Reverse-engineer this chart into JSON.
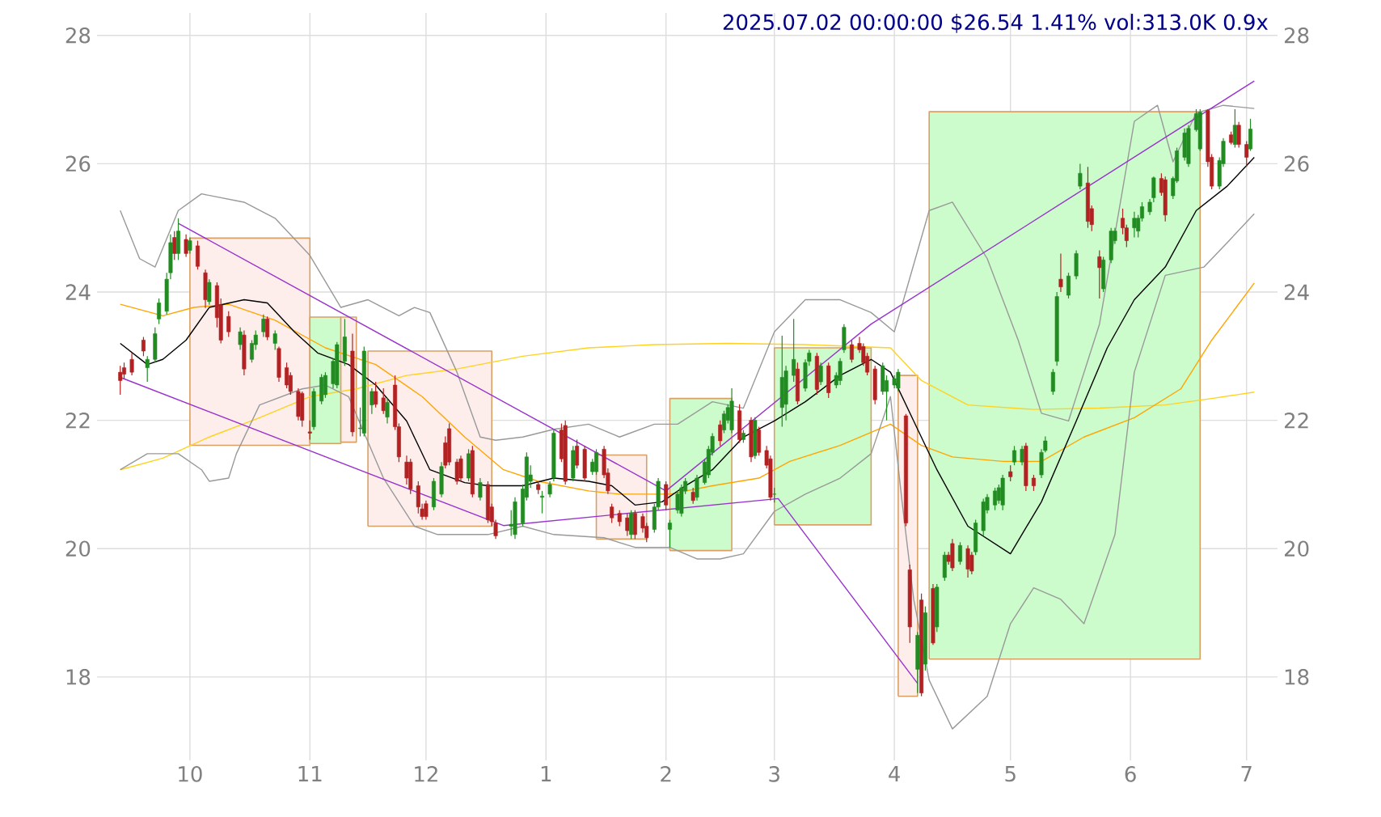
{
  "chart_data": {
    "type": "candlestick",
    "title": "2025.07.02 00:00:00 $26.54 1.41% vol:313.0K 0.9x",
    "xlim": [
      "2024-09-07",
      "2025-07-09"
    ],
    "ylim": [
      16.7,
      28.35
    ],
    "y2lim": [
      16.7,
      28.35
    ],
    "xticks": [
      {
        "value": "2024-10-01",
        "label": "10"
      },
      {
        "value": "2024-11-01",
        "label": "11"
      },
      {
        "value": "2024-12-01",
        "label": "12"
      },
      {
        "value": "2025-01-01",
        "label": "1"
      },
      {
        "value": "2025-02-01",
        "label": "2"
      },
      {
        "value": "2025-03-01",
        "label": "3"
      },
      {
        "value": "2025-04-01",
        "label": "4"
      },
      {
        "value": "2025-05-01",
        "label": "5"
      },
      {
        "value": "2025-06-01",
        "label": "6"
      },
      {
        "value": "2025-07-01",
        "label": "7"
      }
    ],
    "yticks": [
      18,
      20,
      22,
      24,
      26,
      28
    ],
    "y2ticks": [
      18,
      20,
      22,
      24,
      26,
      28
    ],
    "grid": true,
    "x": [
      "2024-09-13",
      "2024-09-14",
      "2024-09-16",
      "2024-09-19",
      "2024-09-20",
      "2024-09-22",
      "2024-09-23",
      "2024-09-25",
      "2024-09-26",
      "2024-09-27",
      "2024-09-28",
      "2024-09-30",
      "2024-10-01",
      "2024-10-03",
      "2024-10-05",
      "2024-10-06",
      "2024-10-08",
      "2024-10-09",
      "2024-10-11",
      "2024-10-14",
      "2024-10-15",
      "2024-10-17",
      "2024-10-18",
      "2024-10-20",
      "2024-10-21",
      "2024-10-23",
      "2024-10-24",
      "2024-10-26",
      "2024-10-27",
      "2024-10-29",
      "2024-10-30",
      "2024-11-01",
      "2024-11-02",
      "2024-11-04",
      "2024-11-05",
      "2024-11-07",
      "2024-11-08",
      "2024-11-10",
      "2024-11-12",
      "2024-11-14",
      "2024-11-15",
      "2024-11-17",
      "2024-11-18",
      "2024-11-20",
      "2024-11-21",
      "2024-11-23",
      "2024-11-24",
      "2024-11-26",
      "2024-11-27",
      "2024-11-29",
      "2024-11-30",
      "2024-12-01",
      "2024-12-03",
      "2024-12-05",
      "2024-12-06",
      "2024-12-07",
      "2024-12-09",
      "2024-12-10",
      "2024-12-12",
      "2024-12-13",
      "2024-12-15",
      "2024-12-17",
      "2024-12-18",
      "2024-12-19",
      "2024-12-23",
      "2024-12-24",
      "2024-12-26",
      "2024-12-27",
      "2024-12-28",
      "2024-12-30",
      "2024-12-31",
      "2025-01-02",
      "2025-01-03",
      "2025-01-05",
      "2025-01-06",
      "2025-01-08",
      "2025-01-09",
      "2025-01-11",
      "2025-01-13",
      "2025-01-14",
      "2025-01-16",
      "2025-01-17",
      "2025-01-18",
      "2025-01-20",
      "2025-01-22",
      "2025-01-23",
      "2025-01-24",
      "2025-01-26",
      "2025-01-27",
      "2025-01-29",
      "2025-01-30",
      "2025-02-01",
      "2025-02-02",
      "2025-02-04",
      "2025-02-05",
      "2025-02-06",
      "2025-02-08",
      "2025-02-09",
      "2025-02-11",
      "2025-02-12",
      "2025-02-13",
      "2025-02-15",
      "2025-02-16",
      "2025-02-17",
      "2025-02-18",
      "2025-02-20",
      "2025-02-21",
      "2025-02-23",
      "2025-02-24",
      "2025-02-25",
      "2025-02-27",
      "2025-02-28",
      "2025-03-01",
      "2025-03-03",
      "2025-03-04",
      "2025-03-06",
      "2025-03-07",
      "2025-03-09",
      "2025-03-10",
      "2025-03-12",
      "2025-03-13",
      "2025-03-15",
      "2025-03-17",
      "2025-03-18",
      "2025-03-19",
      "2025-03-21",
      "2025-03-23",
      "2025-03-24",
      "2025-03-25",
      "2025-03-27",
      "2025-03-29",
      "2025-03-30",
      "2025-04-01",
      "2025-04-02",
      "2025-04-04",
      "2025-04-05",
      "2025-04-07",
      "2025-04-08",
      "2025-04-09",
      "2025-04-11",
      "2025-04-12",
      "2025-04-14",
      "2025-04-15",
      "2025-04-16",
      "2025-04-18",
      "2025-04-20",
      "2025-04-21",
      "2025-04-22",
      "2025-04-24",
      "2025-04-25",
      "2025-04-27",
      "2025-04-28",
      "2025-04-29",
      "2025-05-01",
      "2025-05-02",
      "2025-05-04",
      "2025-05-05",
      "2025-05-07",
      "2025-05-09",
      "2025-05-10",
      "2025-05-12",
      "2025-05-13",
      "2025-05-14",
      "2025-05-16",
      "2025-05-18",
      "2025-05-19",
      "2025-05-21",
      "2025-05-22",
      "2025-05-24",
      "2025-05-25",
      "2025-05-27",
      "2025-05-28",
      "2025-05-30",
      "2025-05-31",
      "2025-06-02",
      "2025-06-03",
      "2025-06-04",
      "2025-06-06",
      "2025-06-07",
      "2025-06-09",
      "2025-06-10",
      "2025-06-12",
      "2025-06-13",
      "2025-06-15",
      "2025-06-16",
      "2025-06-18",
      "2025-06-19",
      "2025-06-21",
      "2025-06-22",
      "2025-06-24",
      "2025-06-25",
      "2025-06-27",
      "2025-06-28",
      "2025-06-29",
      "2025-07-01",
      "2025-07-02"
    ],
    "ohlc": [
      [
        22.75,
        22.85,
        22.4,
        22.62
      ],
      [
        22.82,
        22.9,
        22.65,
        22.72
      ],
      [
        22.95,
        23.05,
        22.7,
        22.75
      ],
      [
        23.25,
        23.3,
        23.0,
        23.08
      ],
      [
        22.82,
        23.0,
        22.6,
        22.95
      ],
      [
        22.95,
        23.45,
        22.9,
        23.35
      ],
      [
        23.58,
        23.9,
        23.5,
        23.83
      ],
      [
        23.7,
        24.3,
        23.65,
        24.2
      ],
      [
        24.3,
        24.9,
        24.2,
        24.77
      ],
      [
        24.85,
        24.95,
        24.5,
        24.6
      ],
      [
        24.6,
        25.15,
        24.5,
        24.95
      ],
      [
        24.82,
        24.9,
        24.55,
        24.6
      ],
      [
        24.65,
        24.85,
        24.6,
        24.8
      ],
      [
        24.72,
        24.8,
        24.35,
        24.4
      ],
      [
        24.3,
        24.35,
        23.75,
        23.88
      ],
      [
        23.85,
        24.2,
        23.8,
        24.15
      ],
      [
        24.1,
        24.15,
        23.45,
        23.6
      ],
      [
        23.8,
        23.9,
        23.2,
        23.25
      ],
      [
        23.62,
        23.7,
        23.3,
        23.38
      ],
      [
        23.18,
        23.45,
        23.1,
        23.38
      ],
      [
        23.33,
        23.4,
        22.7,
        22.8
      ],
      [
        22.95,
        23.25,
        22.9,
        23.2
      ],
      [
        23.18,
        23.4,
        23.1,
        23.33
      ],
      [
        23.38,
        23.65,
        23.3,
        23.58
      ],
      [
        23.58,
        23.62,
        23.25,
        23.3
      ],
      [
        23.2,
        23.4,
        23.1,
        23.35
      ],
      [
        23.12,
        23.15,
        22.6,
        22.67
      ],
      [
        22.82,
        22.9,
        22.5,
        22.55
      ],
      [
        22.7,
        22.75,
        22.4,
        22.45
      ],
      [
        22.45,
        22.5,
        22.0,
        22.06
      ],
      [
        22.42,
        22.45,
        21.9,
        22.0
      ],
      [
        21.82,
        22.0,
        21.7,
        21.8
      ],
      [
        21.9,
        22.5,
        21.85,
        22.45
      ],
      [
        22.3,
        22.72,
        22.25,
        22.67
      ],
      [
        22.4,
        22.75,
        22.35,
        22.7
      ],
      [
        22.57,
        22.97,
        22.5,
        22.92
      ],
      [
        22.55,
        23.22,
        22.5,
        23.18
      ],
      [
        22.92,
        23.58,
        22.85,
        23.3
      ],
      [
        23.08,
        23.35,
        21.75,
        21.82
      ],
      [
        21.87,
        22.2,
        21.75,
        21.88
      ],
      [
        21.8,
        23.15,
        21.75,
        23.08
      ],
      [
        22.24,
        22.5,
        22.1,
        22.45
      ],
      [
        22.45,
        22.6,
        22.2,
        22.25
      ],
      [
        22.35,
        22.5,
        22.1,
        22.15
      ],
      [
        22.05,
        22.35,
        21.95,
        22.28
      ],
      [
        22.55,
        22.7,
        21.85,
        21.9
      ],
      [
        21.9,
        21.95,
        21.35,
        21.43
      ],
      [
        21.35,
        21.45,
        21.0,
        21.1
      ],
      [
        21.35,
        21.4,
        20.85,
        20.93
      ],
      [
        20.98,
        21.05,
        20.55,
        20.65
      ],
      [
        20.62,
        20.7,
        20.45,
        20.5
      ],
      [
        20.7,
        20.75,
        20.45,
        20.5
      ],
      [
        20.65,
        21.1,
        20.6,
        21.05
      ],
      [
        20.85,
        21.35,
        20.8,
        21.28
      ],
      [
        21.65,
        21.75,
        21.25,
        21.3
      ],
      [
        21.87,
        21.95,
        21.3,
        21.35
      ],
      [
        21.35,
        21.4,
        21.0,
        21.05
      ],
      [
        21.4,
        21.45,
        21.05,
        21.1
      ],
      [
        21.1,
        21.55,
        21.05,
        21.48
      ],
      [
        21.53,
        21.6,
        20.8,
        20.85
      ],
      [
        20.8,
        21.1,
        20.75,
        21.03
      ],
      [
        21.0,
        21.05,
        20.4,
        20.45
      ],
      [
        20.65,
        20.7,
        20.35,
        20.42
      ],
      [
        20.4,
        20.45,
        20.15,
        20.2
      ],
      [
        20.35,
        20.6,
        20.2,
        20.38
      ],
      [
        20.22,
        20.8,
        20.15,
        20.73
      ],
      [
        20.4,
        21.0,
        20.35,
        20.93
      ],
      [
        20.8,
        21.5,
        20.75,
        21.43
      ],
      [
        21.05,
        21.3,
        20.95,
        21.15
      ],
      [
        21.0,
        21.05,
        20.85,
        20.92
      ],
      [
        20.8,
        20.9,
        20.55,
        20.82
      ],
      [
        20.85,
        21.05,
        20.8,
        21.0
      ],
      [
        21.1,
        21.85,
        21.05,
        21.8
      ],
      [
        21.85,
        21.95,
        21.35,
        21.4
      ],
      [
        21.92,
        22.0,
        21.0,
        21.05
      ],
      [
        21.1,
        21.6,
        21.05,
        21.53
      ],
      [
        21.6,
        21.7,
        21.25,
        21.3
      ],
      [
        21.55,
        21.6,
        21.05,
        21.1
      ],
      [
        21.2,
        21.4,
        21.15,
        21.35
      ],
      [
        21.2,
        21.55,
        21.15,
        21.5
      ],
      [
        21.55,
        21.6,
        21.1,
        21.15
      ],
      [
        21.18,
        21.25,
        20.85,
        20.9
      ],
      [
        20.65,
        20.7,
        20.4,
        20.48
      ],
      [
        20.55,
        20.6,
        20.35,
        20.42
      ],
      [
        20.48,
        20.55,
        20.2,
        20.28
      ],
      [
        20.22,
        20.6,
        20.15,
        20.55
      ],
      [
        20.55,
        20.6,
        20.15,
        20.22
      ],
      [
        20.5,
        20.55,
        20.25,
        20.32
      ],
      [
        20.35,
        20.4,
        20.1,
        20.17
      ],
      [
        20.3,
        20.7,
        20.25,
        20.65
      ],
      [
        20.65,
        21.1,
        20.6,
        21.05
      ],
      [
        21.0,
        21.05,
        20.6,
        20.68
      ],
      [
        20.3,
        20.45,
        20.02,
        20.4
      ],
      [
        20.6,
        20.9,
        20.55,
        20.85
      ],
      [
        20.55,
        21.0,
        20.5,
        20.95
      ],
      [
        20.9,
        21.1,
        20.85,
        21.05
      ],
      [
        20.88,
        20.95,
        20.7,
        20.75
      ],
      [
        20.8,
        21.15,
        20.75,
        21.1
      ],
      [
        21.03,
        21.4,
        21.0,
        21.35
      ],
      [
        21.15,
        21.6,
        21.1,
        21.55
      ],
      [
        21.5,
        21.8,
        21.45,
        21.75
      ],
      [
        21.93,
        22.0,
        21.6,
        21.68
      ],
      [
        21.85,
        22.15,
        21.8,
        22.1
      ],
      [
        22.0,
        22.25,
        21.95,
        22.2
      ],
      [
        21.85,
        22.5,
        21.8,
        22.3
      ],
      [
        22.15,
        22.25,
        21.65,
        21.7
      ],
      [
        21.7,
        21.85,
        21.65,
        21.8
      ],
      [
        22.0,
        22.05,
        21.35,
        21.43
      ],
      [
        21.45,
        22.05,
        21.4,
        22.0
      ],
      [
        21.85,
        21.9,
        21.45,
        21.5
      ],
      [
        21.53,
        21.6,
        21.25,
        21.3
      ],
      [
        21.4,
        21.45,
        20.75,
        20.8
      ],
      [
        20.85,
        20.95,
        20.72,
        20.85
      ],
      [
        22.2,
        23.32,
        21.9,
        22.67
      ],
      [
        22.25,
        22.85,
        22.0,
        22.77
      ],
      [
        22.7,
        23.58,
        22.6,
        22.95
      ],
      [
        22.8,
        22.9,
        22.25,
        22.3
      ],
      [
        22.5,
        22.95,
        22.45,
        22.9
      ],
      [
        22.92,
        23.1,
        22.85,
        23.05
      ],
      [
        23.0,
        23.05,
        22.4,
        22.48
      ],
      [
        22.6,
        22.9,
        22.55,
        22.85
      ],
      [
        22.85,
        22.9,
        22.35,
        22.43
      ],
      [
        22.55,
        22.75,
        22.5,
        22.7
      ],
      [
        22.62,
        22.97,
        22.55,
        22.92
      ],
      [
        23.1,
        23.5,
        23.05,
        23.45
      ],
      [
        23.18,
        23.25,
        22.9,
        22.95
      ],
      [
        23.2,
        23.3,
        23.05,
        23.1
      ],
      [
        23.15,
        23.2,
        22.85,
        22.9
      ],
      [
        23.0,
        23.05,
        22.7,
        22.75
      ],
      [
        22.8,
        22.85,
        22.25,
        22.32
      ],
      [
        22.45,
        22.9,
        22.4,
        22.85
      ],
      [
        22.45,
        22.7,
        22.0,
        22.62
      ],
      [
        22.55,
        22.7,
        22.5,
        22.65
      ],
      [
        22.5,
        22.8,
        22.45,
        22.75
      ],
      [
        22.07,
        22.1,
        20.35,
        20.4
      ],
      [
        19.67,
        19.75,
        18.53,
        18.78
      ],
      [
        18.12,
        18.7,
        17.75,
        18.65
      ],
      [
        19.2,
        19.3,
        17.7,
        17.75
      ],
      [
        18.2,
        19.1,
        18.1,
        19.0
      ],
      [
        19.38,
        19.45,
        18.5,
        18.53
      ],
      [
        18.78,
        19.45,
        18.7,
        19.4
      ],
      [
        19.55,
        19.95,
        19.5,
        19.9
      ],
      [
        19.9,
        19.95,
        19.75,
        19.8
      ],
      [
        20.08,
        20.15,
        19.65,
        19.7
      ],
      [
        19.8,
        20.1,
        19.75,
        20.05
      ],
      [
        20.0,
        20.05,
        19.55,
        19.68
      ],
      [
        19.9,
        19.95,
        19.6,
        19.65
      ],
      [
        19.95,
        20.45,
        19.9,
        20.4
      ],
      [
        20.28,
        20.78,
        20.2,
        20.73
      ],
      [
        20.6,
        20.85,
        20.55,
        20.8
      ],
      [
        20.68,
        20.95,
        20.6,
        20.9
      ],
      [
        20.75,
        21.0,
        20.7,
        20.95
      ],
      [
        20.68,
        21.15,
        20.6,
        21.1
      ],
      [
        21.2,
        21.3,
        21.05,
        21.12
      ],
      [
        21.35,
        21.6,
        21.3,
        21.53
      ],
      [
        21.35,
        21.6,
        21.3,
        21.55
      ],
      [
        21.6,
        21.65,
        20.9,
        20.98
      ],
      [
        21.1,
        21.15,
        20.9,
        20.98
      ],
      [
        21.15,
        21.55,
        21.1,
        21.5
      ],
      [
        21.53,
        21.75,
        21.5,
        21.68
      ],
      [
        22.45,
        22.8,
        22.4,
        22.75
      ],
      [
        22.92,
        24.0,
        22.85,
        23.93
      ],
      [
        24.2,
        24.6,
        24.0,
        24.08
      ],
      [
        23.95,
        24.3,
        23.9,
        24.25
      ],
      [
        24.25,
        24.65,
        24.2,
        24.6
      ],
      [
        25.65,
        26.0,
        25.6,
        25.85
      ],
      [
        25.7,
        25.95,
        25.0,
        25.1
      ],
      [
        25.3,
        25.35,
        24.95,
        25.05
      ],
      [
        24.55,
        24.65,
        23.9,
        24.38
      ],
      [
        24.05,
        24.55,
        24.0,
        24.5
      ],
      [
        24.5,
        25.0,
        24.45,
        24.95
      ],
      [
        24.8,
        25.0,
        24.75,
        24.95
      ],
      [
        25.15,
        25.3,
        24.9,
        25.0
      ],
      [
        25.0,
        25.05,
        24.7,
        24.8
      ],
      [
        25.0,
        25.25,
        24.85,
        25.15
      ],
      [
        24.95,
        25.2,
        24.85,
        25.15
      ],
      [
        25.15,
        25.4,
        25.1,
        25.33
      ],
      [
        25.25,
        25.45,
        25.2,
        25.4
      ],
      [
        25.47,
        25.8,
        25.4,
        25.78
      ],
      [
        25.77,
        25.85,
        25.5,
        25.55
      ],
      [
        25.75,
        25.8,
        25.1,
        25.2
      ],
      [
        25.5,
        25.8,
        25.45,
        25.77
      ],
      [
        25.73,
        26.25,
        25.7,
        26.2
      ],
      [
        26.1,
        26.55,
        26.05,
        26.48
      ],
      [
        26.0,
        26.6,
        25.95,
        26.55
      ],
      [
        26.53,
        26.85,
        26.5,
        26.78
      ],
      [
        26.23,
        26.85,
        26.2,
        26.8
      ],
      [
        26.83,
        26.85,
        25.95,
        26.03
      ],
      [
        26.1,
        26.15,
        25.6,
        25.65
      ],
      [
        25.65,
        26.1,
        25.6,
        26.05
      ],
      [
        26.0,
        26.4,
        25.95,
        26.35
      ],
      [
        26.45,
        26.5,
        26.3,
        26.33
      ],
      [
        26.3,
        26.85,
        26.25,
        26.6
      ],
      [
        26.6,
        26.65,
        26.25,
        26.3
      ],
      [
        26.3,
        26.35,
        25.95,
        26.1
      ],
      [
        26.23,
        26.7,
        26.2,
        26.54
      ]
    ],
    "series": [
      {
        "type": "area",
        "color": "#fdeeec",
        "x": [
          "2024-10-01",
          "2024-11-01",
          "2024-11-01",
          "2024-10-01",
          "2024-10-01"
        ],
        "values": [
          21.61,
          21.61,
          24.84,
          24.84,
          21.61
        ]
      },
      {
        "type": "area",
        "color": "#ccfccc",
        "x": [
          "2024-11-01",
          "2024-11-09",
          "2024-11-09",
          "2024-11-01",
          "2024-11-01"
        ],
        "values": [
          21.64,
          21.64,
          23.61,
          23.61,
          21.64
        ]
      },
      {
        "type": "area",
        "color": "#fdeeec",
        "x": [
          "2024-11-09",
          "2024-11-13",
          "2024-11-13",
          "2024-11-09",
          "2024-11-09"
        ],
        "values": [
          21.66,
          21.66,
          23.61,
          23.61,
          21.66
        ]
      },
      {
        "type": "area",
        "color": "#fdeeec",
        "x": [
          "2024-11-16",
          "2024-12-18",
          "2024-12-18",
          "2024-11-16",
          "2024-11-16"
        ],
        "values": [
          20.35,
          20.35,
          23.08,
          23.08,
          20.35
        ]
      },
      {
        "type": "area",
        "color": "#fdeeec",
        "x": [
          "2025-01-14",
          "2025-01-27",
          "2025-01-27",
          "2025-01-14",
          "2025-01-14"
        ],
        "values": [
          20.15,
          20.15,
          21.46,
          21.46,
          20.15
        ]
      },
      {
        "type": "area",
        "color": "#ccfccc",
        "x": [
          "2025-02-02",
          "2025-02-18",
          "2025-02-18",
          "2025-02-02",
          "2025-02-02"
        ],
        "values": [
          19.97,
          19.97,
          22.34,
          22.34,
          19.97
        ]
      },
      {
        "type": "area",
        "color": "#ccfccc",
        "x": [
          "2025-03-01",
          "2025-03-26",
          "2025-03-26",
          "2025-03-01",
          "2025-03-01"
        ],
        "values": [
          20.37,
          20.37,
          23.13,
          23.13,
          20.37
        ]
      },
      {
        "type": "area",
        "color": "#fdeeec",
        "x": [
          "2025-04-02",
          "2025-04-07",
          "2025-04-07",
          "2025-04-02",
          "2025-04-02"
        ],
        "values": [
          17.7,
          17.7,
          22.7,
          22.7,
          17.7
        ]
      },
      {
        "type": "area",
        "color": "#ccfccc",
        "x": [
          "2025-04-10",
          "2025-06-19",
          "2025-06-19",
          "2025-04-10",
          "2025-04-10"
        ],
        "values": [
          18.28,
          18.28,
          26.81,
          26.81,
          18.28
        ]
      },
      {
        "type": "line",
        "color": "#ffd21f",
        "x": [
          "2024-09-13",
          "2024-09-24",
          "2024-10-06",
          "2024-10-19",
          "2024-11-01",
          "2024-11-13",
          "2024-11-26",
          "2024-12-09",
          "2024-12-26",
          "2025-01-12",
          "2025-01-29",
          "2025-02-17",
          "2025-03-09",
          "2025-03-31",
          "2025-04-08",
          "2025-04-20",
          "2025-05-07",
          "2025-05-24",
          "2025-06-10",
          "2025-06-22",
          "2025-07-03"
        ],
        "values": [
          21.23,
          21.41,
          21.74,
          22.04,
          22.37,
          22.49,
          22.7,
          22.8,
          23.0,
          23.13,
          23.18,
          23.2,
          23.18,
          23.13,
          22.62,
          22.24,
          22.17,
          22.19,
          22.24,
          22.34,
          22.44
        ]
      },
      {
        "type": "line",
        "color": "#ffa500",
        "x": [
          "2024-09-13",
          "2024-09-24",
          "2024-10-02",
          "2024-10-11",
          "2024-10-23",
          "2024-11-05",
          "2024-11-18",
          "2024-11-30",
          "2024-12-11",
          "2024-12-21",
          "2024-12-30",
          "2025-01-12",
          "2025-01-20",
          "2025-02-02",
          "2025-02-13",
          "2025-02-25",
          "2025-03-05",
          "2025-03-18",
          "2025-03-31",
          "2025-04-08",
          "2025-04-16",
          "2025-04-29",
          "2025-05-09",
          "2025-05-20",
          "2025-06-02",
          "2025-06-14",
          "2025-06-22",
          "2025-07-03"
        ],
        "values": [
          23.81,
          23.63,
          23.76,
          23.81,
          23.56,
          23.13,
          22.87,
          22.37,
          21.74,
          21.23,
          21.05,
          20.9,
          20.85,
          20.85,
          20.98,
          21.1,
          21.36,
          21.61,
          21.94,
          21.61,
          21.43,
          21.36,
          21.36,
          21.74,
          22.04,
          22.49,
          23.25,
          24.14
        ]
      },
      {
        "type": "line",
        "color": "#999999",
        "x": [
          "2024-09-13",
          "2024-09-18",
          "2024-09-22",
          "2024-09-28",
          "2024-10-04",
          "2024-10-15",
          "2024-10-23",
          "2024-11-01",
          "2024-11-09",
          "2024-11-16",
          "2024-11-24",
          "2024-11-28",
          "2024-12-02",
          "2024-12-09",
          "2024-12-15",
          "2024-12-19",
          "2024-12-26",
          "2025-01-03",
          "2025-01-12",
          "2025-01-20",
          "2025-01-29",
          "2025-02-04",
          "2025-02-13",
          "2025-02-21",
          "2025-03-01",
          "2025-03-09",
          "2025-03-18",
          "2025-03-26",
          "2025-04-01",
          "2025-04-04",
          "2025-04-10",
          "2025-04-16",
          "2025-04-25",
          "2025-05-03",
          "2025-05-09",
          "2025-05-16",
          "2025-05-24",
          "2025-06-02",
          "2025-06-08",
          "2025-06-12",
          "2025-06-18",
          "2025-06-25",
          "2025-07-03"
        ],
        "values": [
          25.27,
          24.52,
          24.39,
          25.27,
          25.53,
          25.4,
          25.15,
          24.57,
          23.76,
          23.88,
          23.63,
          23.76,
          23.68,
          22.75,
          21.74,
          21.69,
          21.74,
          21.86,
          21.94,
          21.74,
          21.94,
          21.94,
          22.29,
          22.19,
          23.38,
          23.88,
          23.88,
          23.68,
          23.38,
          24.01,
          25.27,
          25.4,
          24.52,
          23.25,
          22.11,
          21.99,
          23.5,
          26.66,
          26.91,
          26.03,
          26.79,
          26.91,
          26.86
        ]
      },
      {
        "type": "line",
        "color": "#999999",
        "x": [
          "2024-09-13",
          "2024-09-20",
          "2024-09-28",
          "2024-10-04",
          "2024-10-06",
          "2024-10-11",
          "2024-10-13",
          "2024-10-19",
          "2024-10-30",
          "2024-11-05",
          "2024-11-11",
          "2024-11-20",
          "2024-11-28",
          "2024-12-04",
          "2024-12-17",
          "2024-12-26",
          "2025-01-03",
          "2025-01-16",
          "2025-01-24",
          "2025-02-02",
          "2025-02-09",
          "2025-02-15",
          "2025-02-21",
          "2025-03-01",
          "2025-03-09",
          "2025-03-18",
          "2025-03-26",
          "2025-03-31",
          "2025-04-03",
          "2025-04-06",
          "2025-04-10",
          "2025-04-16",
          "2025-04-25",
          "2025-05-01",
          "2025-05-07",
          "2025-05-14",
          "2025-05-20",
          "2025-05-28",
          "2025-06-02",
          "2025-06-10",
          "2025-06-20",
          "2025-06-26",
          "2025-07-03"
        ],
        "values": [
          21.23,
          21.48,
          21.48,
          21.23,
          21.05,
          21.1,
          21.48,
          22.24,
          22.49,
          22.55,
          22.37,
          21.1,
          20.35,
          20.22,
          20.22,
          20.35,
          20.22,
          20.17,
          20.02,
          20.02,
          19.84,
          19.84,
          19.92,
          20.58,
          20.85,
          21.1,
          21.48,
          22.37,
          20.73,
          19.21,
          17.95,
          17.19,
          17.7,
          18.83,
          19.39,
          19.21,
          18.83,
          20.22,
          22.75,
          24.26,
          24.39,
          24.77,
          25.22
        ]
      },
      {
        "type": "line",
        "color": "#000000",
        "x": [
          "2024-09-13",
          "2024-09-20",
          "2024-09-24",
          "2024-09-30",
          "2024-10-06",
          "2024-10-15",
          "2024-10-21",
          "2024-10-28",
          "2024-11-03",
          "2024-11-11",
          "2024-11-18",
          "2024-11-26",
          "2024-12-02",
          "2024-12-11",
          "2024-12-17",
          "2024-12-26",
          "2025-01-03",
          "2025-01-12",
          "2025-01-18",
          "2025-01-24",
          "2025-01-31",
          "2025-02-06",
          "2025-02-13",
          "2025-02-21",
          "2025-03-01",
          "2025-03-09",
          "2025-03-18",
          "2025-03-26",
          "2025-03-31",
          "2025-04-06",
          "2025-04-12",
          "2025-04-20",
          "2025-05-01",
          "2025-05-09",
          "2025-05-18",
          "2025-05-26",
          "2025-06-02",
          "2025-06-10",
          "2025-06-18",
          "2025-06-26",
          "2025-07-03"
        ],
        "values": [
          23.2,
          22.87,
          22.95,
          23.25,
          23.76,
          23.88,
          23.83,
          23.38,
          23.05,
          22.87,
          22.55,
          21.99,
          21.23,
          21.03,
          20.98,
          20.98,
          21.1,
          21.05,
          20.98,
          20.68,
          20.73,
          20.98,
          21.23,
          21.74,
          21.99,
          22.29,
          22.7,
          22.95,
          22.75,
          21.99,
          21.23,
          20.35,
          19.92,
          20.73,
          21.99,
          23.13,
          23.88,
          24.39,
          25.27,
          25.65,
          26.1
        ]
      },
      {
        "type": "line",
        "color": "#9932cc",
        "x": [
          "2024-09-28",
          "2025-02-01",
          "2025-03-26",
          "2025-07-03"
        ],
        "values": [
          25.07,
          20.9,
          23.5,
          27.29
        ]
      },
      {
        "type": "line",
        "color": "#9932cc",
        "x": [
          "2024-09-13",
          "2024-12-21",
          "2025-03-02",
          "2025-04-07"
        ],
        "values": [
          22.67,
          20.36,
          20.78,
          17.9
        ]
      }
    ]
  }
}
